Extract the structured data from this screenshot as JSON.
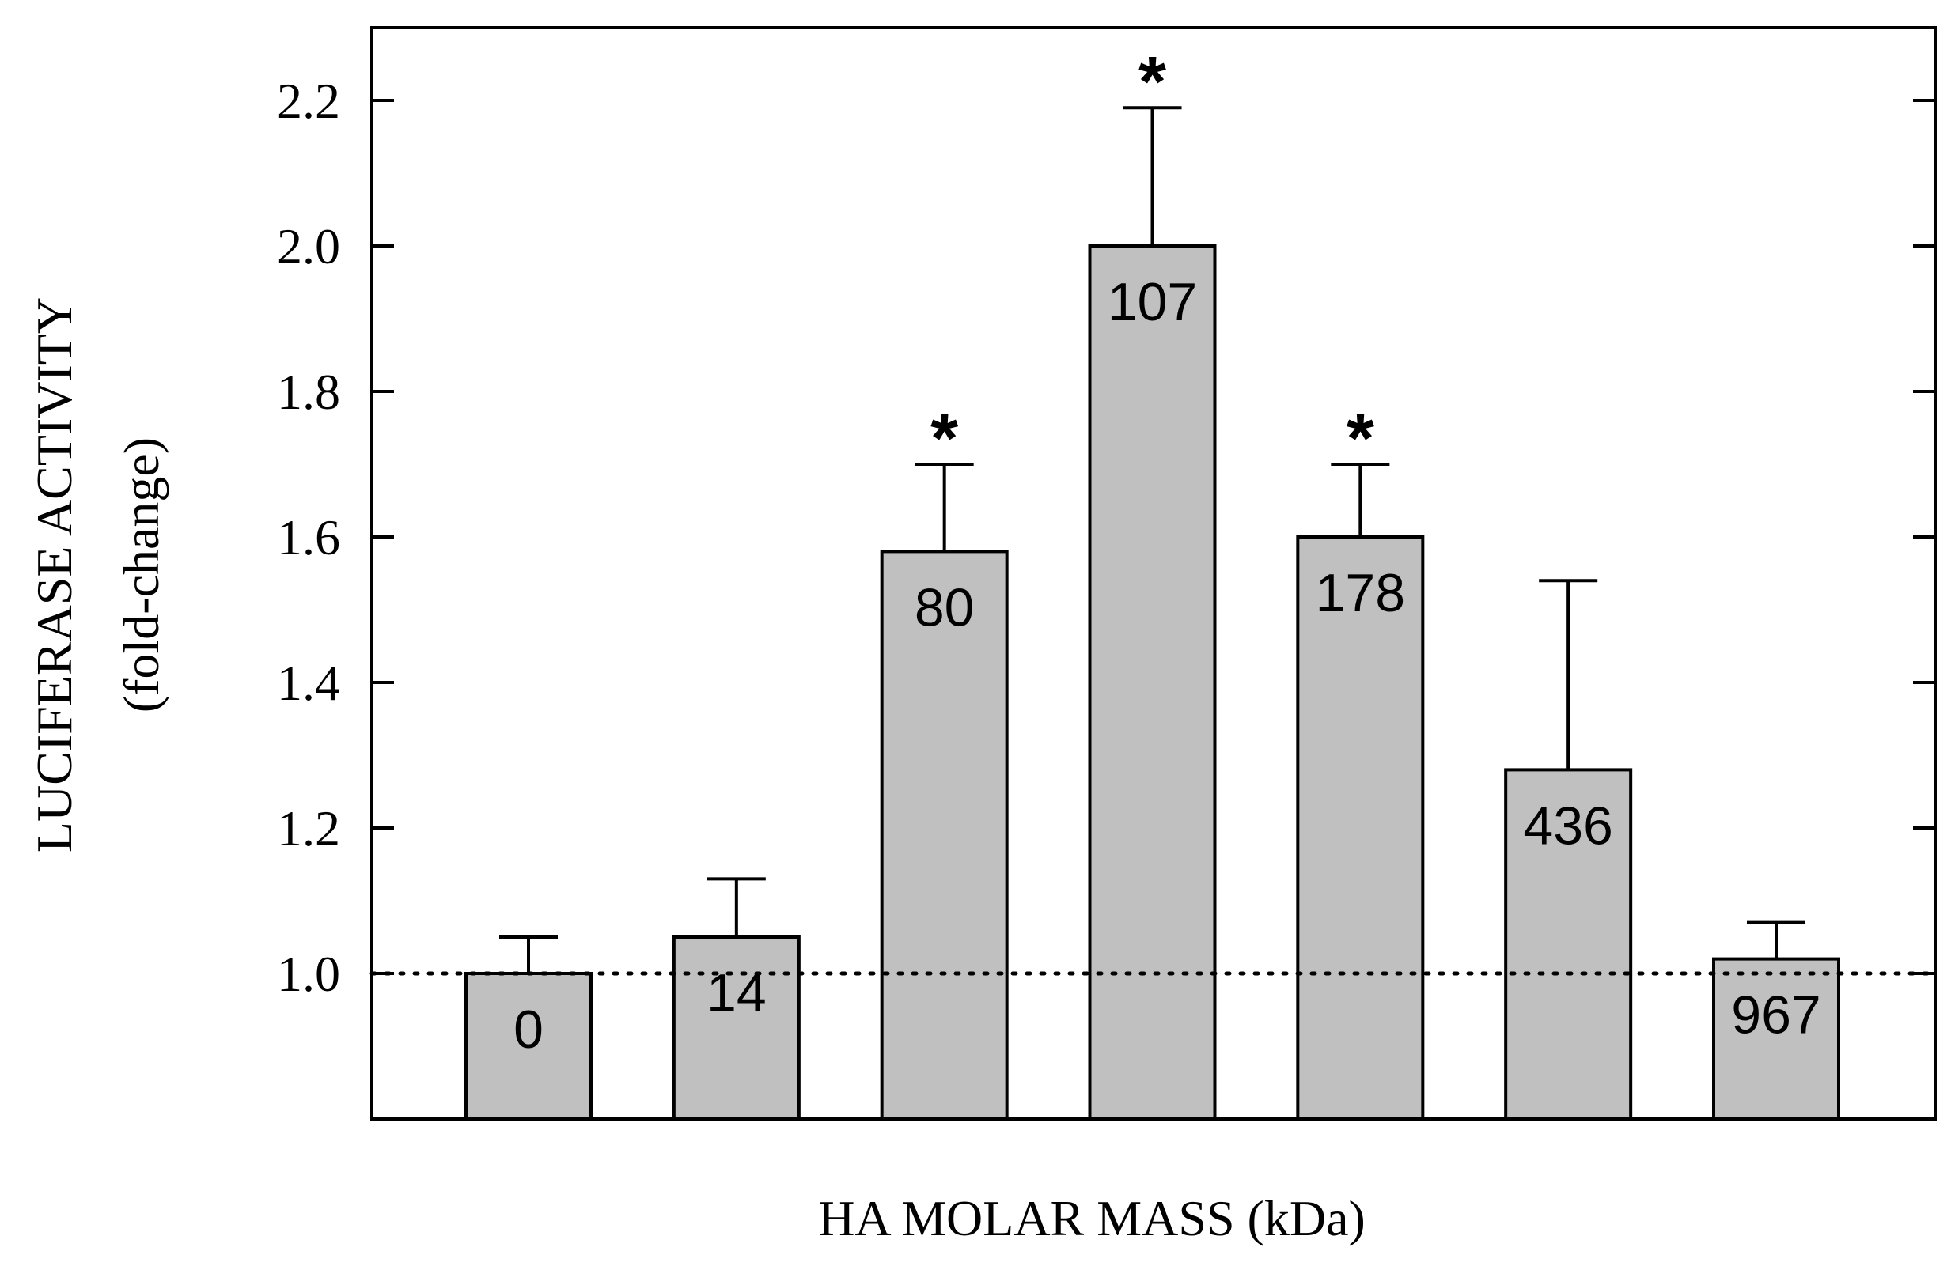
{
  "chart_data": {
    "type": "bar",
    "title": "",
    "xlabel": "HA MOLAR MASS (kDa)",
    "ylabel_line1": "LUCIFERASE ACTIVITY",
    "ylabel_line2": "(fold-change)",
    "ylim": [
      0.8,
      2.3
    ],
    "yticks": [
      1.0,
      1.2,
      1.4,
      1.6,
      1.8,
      2.0,
      2.2
    ],
    "ytick_labels": [
      "1.0",
      "1.2",
      "1.4",
      "1.6",
      "1.8",
      "2.0",
      "2.2"
    ],
    "reference_line": 1.0,
    "significance_marker": "*",
    "categories": [
      "0",
      "14",
      "80",
      "107",
      "178",
      "436",
      "967"
    ],
    "values": [
      1.0,
      1.05,
      1.58,
      2.0,
      1.6,
      1.28,
      1.02
    ],
    "error_upper": [
      1.05,
      1.13,
      1.7,
      2.19,
      1.7,
      1.54,
      1.07
    ],
    "significant": [
      false,
      false,
      true,
      true,
      true,
      false,
      false
    ],
    "bar_color": "#c0c0c0",
    "edge_color": "#000000"
  }
}
